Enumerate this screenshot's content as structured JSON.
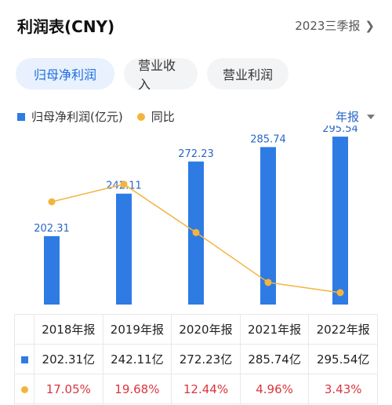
{
  "header": {
    "title": "利润表(CNY)",
    "report_link": "2023三季报"
  },
  "tabs": [
    {
      "label": "归母净利润",
      "active": true
    },
    {
      "label": "营业收入",
      "active": false
    },
    {
      "label": "营业利润",
      "active": false
    }
  ],
  "legend": {
    "bar_label": "归母净利润(亿元)",
    "line_label": "同比"
  },
  "period_selector": {
    "value": "年报"
  },
  "colors": {
    "bar": "#2f7be4",
    "line": "#f3b43c",
    "accent": "#1f6fe0",
    "growth": "#d9363e"
  },
  "chart_data": {
    "type": "bar",
    "categories": [
      "2018年报",
      "2019年报",
      "2020年报",
      "2021年报",
      "2022年报"
    ],
    "series": [
      {
        "name": "归母净利润(亿元)",
        "values": [
          202.31,
          242.11,
          272.23,
          285.74,
          295.54
        ],
        "labels": [
          "202.31",
          "242.11",
          "272.23",
          "285.74",
          "295.54"
        ]
      },
      {
        "name": "同比",
        "type": "line",
        "values": [
          17.05,
          19.68,
          12.44,
          4.96,
          3.43
        ]
      }
    ]
  },
  "table": {
    "headers": [
      "2018年报",
      "2019年报",
      "2020年报",
      "2021年报",
      "2022年报"
    ],
    "profit_row": [
      "202.31亿",
      "242.11亿",
      "272.23亿",
      "285.74亿",
      "295.54亿"
    ],
    "growth_row": [
      "17.05%",
      "19.68%",
      "12.44%",
      "4.96%",
      "3.43%"
    ]
  }
}
